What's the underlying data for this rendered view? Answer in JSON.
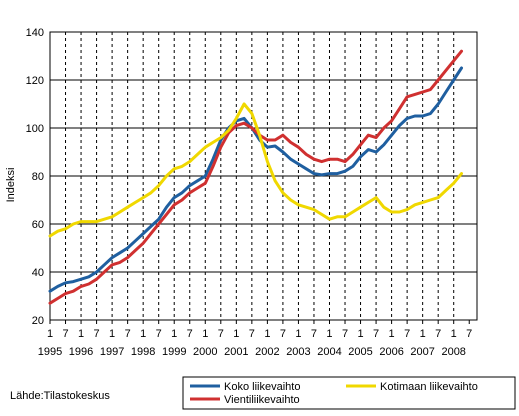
{
  "chart_data": {
    "type": "line",
    "ylabel": "Indeksi",
    "ylim": [
      20,
      140
    ],
    "y_ticks": [
      20,
      40,
      60,
      80,
      100,
      120,
      140
    ],
    "x_range": [
      1995.0,
      2008.75
    ],
    "x_tick_labels": [
      "1",
      "7",
      "1",
      "7",
      "1",
      "7",
      "1",
      "7",
      "1",
      "7",
      "1",
      "7",
      "1",
      "7",
      "1",
      "7",
      "1",
      "7",
      "1",
      "7",
      "1",
      "7",
      "1",
      "7",
      "1",
      "7",
      "1",
      "7"
    ],
    "year_labels": [
      "1995",
      "1996",
      "1997",
      "1998",
      "1999",
      "2000",
      "2001",
      "2002",
      "2003",
      "2004",
      "2005",
      "2006",
      "2007",
      "2008"
    ],
    "grid": "vertical dashed, horizontal solid",
    "legend_position": "bottom-right",
    "series": [
      {
        "name": "Koko liikevaihto",
        "color": "#1f5fa0",
        "x": [
          1995.0,
          1995.25,
          1995.5,
          1995.75,
          1996.0,
          1996.25,
          1996.5,
          1996.75,
          1997.0,
          1997.25,
          1997.5,
          1997.75,
          1998.0,
          1998.25,
          1998.5,
          1998.75,
          1999.0,
          1999.25,
          1999.5,
          1999.75,
          2000.0,
          2000.25,
          2000.5,
          2000.75,
          2001.0,
          2001.25,
          2001.5,
          2001.75,
          2002.0,
          2002.25,
          2002.5,
          2002.75,
          2003.0,
          2003.25,
          2003.5,
          2003.75,
          2004.0,
          2004.25,
          2004.5,
          2004.75,
          2005.0,
          2005.25,
          2005.5,
          2005.75,
          2006.0,
          2006.25,
          2006.5,
          2006.75,
          2007.0,
          2007.25,
          2007.5,
          2007.75,
          2008.0,
          2008.25
        ],
        "values": [
          32,
          34,
          35.5,
          36,
          37,
          38,
          40,
          43,
          46,
          48,
          50,
          53,
          56,
          59,
          62,
          67,
          71,
          73,
          76,
          78,
          80,
          87,
          95,
          100,
          103,
          104,
          100,
          95,
          92,
          92.5,
          90,
          87,
          85,
          83,
          81,
          80.5,
          81,
          81,
          82,
          84,
          88,
          91,
          90,
          93,
          97,
          101,
          104,
          105,
          105,
          106,
          110,
          115,
          120,
          125
        ]
      },
      {
        "name": "Vientiliikevaihto",
        "color": "#d03030",
        "x": [
          1995.0,
          1995.25,
          1995.5,
          1995.75,
          1996.0,
          1996.25,
          1996.5,
          1996.75,
          1997.0,
          1997.25,
          1997.5,
          1997.75,
          1998.0,
          1998.25,
          1998.5,
          1998.75,
          1999.0,
          1999.25,
          1999.5,
          1999.75,
          2000.0,
          2000.25,
          2000.5,
          2000.75,
          2001.0,
          2001.25,
          2001.5,
          2001.75,
          2002.0,
          2002.25,
          2002.5,
          2002.75,
          2003.0,
          2003.25,
          2003.5,
          2003.75,
          2004.0,
          2004.25,
          2004.5,
          2004.75,
          2005.0,
          2005.25,
          2005.5,
          2005.75,
          2006.0,
          2006.25,
          2006.5,
          2006.75,
          2007.0,
          2007.25,
          2007.5,
          2007.75,
          2008.0,
          2008.25
        ],
        "values": [
          27,
          29,
          31,
          32,
          34,
          35,
          37,
          40,
          43,
          44,
          46,
          49,
          52,
          56,
          60,
          64,
          68,
          70,
          73,
          75,
          77,
          84,
          92,
          98,
          101,
          102,
          100,
          97,
          95,
          95,
          97,
          94,
          92,
          89,
          87,
          86,
          87,
          87,
          86,
          89,
          93,
          97,
          96,
          100,
          103,
          108,
          113,
          114,
          115,
          116,
          120,
          124,
          128,
          132
        ]
      },
      {
        "name": "Kotimaan liikevaihto",
        "color": "#f0d800",
        "x": [
          1995.0,
          1995.25,
          1995.5,
          1995.75,
          1996.0,
          1996.25,
          1996.5,
          1996.75,
          1997.0,
          1997.25,
          1997.5,
          1997.75,
          1998.0,
          1998.25,
          1998.5,
          1998.75,
          1999.0,
          1999.25,
          1999.5,
          1999.75,
          2000.0,
          2000.25,
          2000.5,
          2000.75,
          2001.0,
          2001.25,
          2001.5,
          2001.75,
          2002.0,
          2002.25,
          2002.5,
          2002.75,
          2003.0,
          2003.25,
          2003.5,
          2003.75,
          2004.0,
          2004.25,
          2004.5,
          2004.75,
          2005.0,
          2005.25,
          2005.5,
          2005.75,
          2006.0,
          2006.25,
          2006.5,
          2006.75,
          2007.0,
          2007.25,
          2007.5,
          2007.75,
          2008.0,
          2008.25
        ],
        "values": [
          55,
          57,
          58,
          60,
          61,
          61,
          61,
          62,
          63,
          65,
          67,
          69,
          71,
          73,
          76,
          80,
          83,
          84,
          86,
          89,
          92,
          94,
          96,
          99,
          104,
          110,
          106,
          97,
          86,
          78,
          73,
          70,
          68,
          67,
          66,
          64,
          62,
          63,
          63,
          65,
          67,
          69,
          71,
          67,
          65,
          65,
          66,
          68,
          69,
          70,
          71,
          74,
          77,
          81
        ]
      }
    ]
  },
  "source_label": "Lähde:Tilastokeskus"
}
